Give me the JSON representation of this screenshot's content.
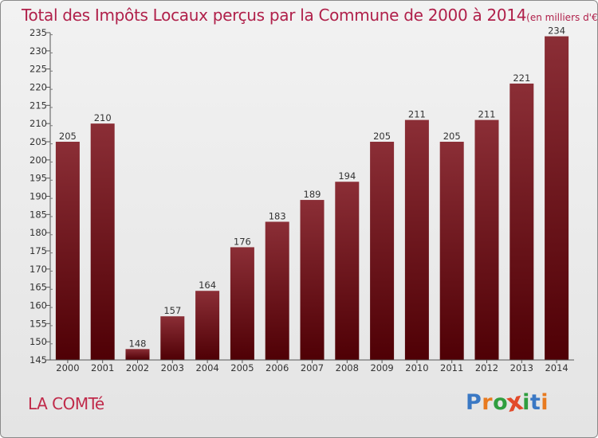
{
  "title": "Total des Impôts Locaux perçus par la Commune de 2000 à 2014",
  "unit": "(en milliers d'€)",
  "commune": "LA COMTé",
  "logo": {
    "letters": [
      "P",
      "r",
      "o",
      "x",
      "i",
      "t",
      "i"
    ],
    "colors": [
      "#3a78c4",
      "#e87a1f",
      "#2f9e3f",
      "#e24a2a",
      "#2f9e3f",
      "#3a78c4",
      "#e87a1f"
    ]
  },
  "chart_data": {
    "type": "bar",
    "title": "Total des Impôts Locaux perçus par la Commune de 2000 à 2014",
    "ylabel": "en milliers d'€",
    "xlabel": "",
    "categories": [
      "2000",
      "2001",
      "2002",
      "2003",
      "2004",
      "2005",
      "2006",
      "2007",
      "2008",
      "2009",
      "2010",
      "2011",
      "2012",
      "2013",
      "2014"
    ],
    "values": [
      205,
      210,
      148,
      157,
      164,
      176,
      183,
      189,
      194,
      205,
      211,
      205,
      211,
      221,
      234
    ],
    "ylim": [
      145,
      235
    ],
    "yticks": [
      145,
      150,
      155,
      160,
      165,
      170,
      175,
      180,
      185,
      190,
      195,
      200,
      205,
      210,
      215,
      220,
      225,
      230,
      235
    ],
    "grid": false,
    "colors": {
      "bar_top": "#8b2e36",
      "bar_bottom": "#4f0005"
    }
  }
}
